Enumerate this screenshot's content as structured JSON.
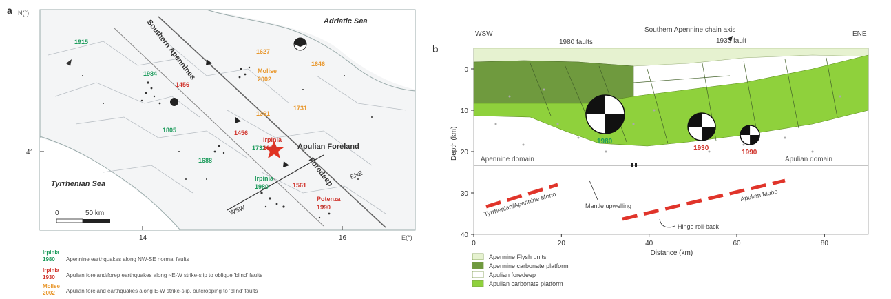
{
  "panel_a": {
    "label": "a",
    "lat_unit": "N(°)",
    "lon_unit": "E(°)",
    "lat_tick": "41",
    "lon_ticks": [
      "14",
      "16"
    ],
    "seas": {
      "adriatic": "Adriatic Sea",
      "tyrrhenian": "Tyrrhenian Sea"
    },
    "features": {
      "southern_apennines": "Southern Apennines",
      "apulian_foreland": "Apulian Foreland",
      "foredeep": "Foredeep"
    },
    "profile_ends": {
      "wsw": "WSW",
      "ene": "ENE"
    },
    "scale": {
      "zero": "0",
      "end": "50 km"
    },
    "years_green": [
      "1915",
      "1984",
      "1805",
      "1688",
      "1732"
    ],
    "years_red": [
      "1456",
      "1456",
      "1561"
    ],
    "years_orange": [
      "1627",
      "1731",
      "1361",
      "1646"
    ],
    "labeled_events": {
      "irpinia_1930": [
        "Irpinia",
        "1930"
      ],
      "irpinia_1980": [
        "Irpinia",
        "1980"
      ],
      "molise_2002": [
        "Molise",
        "2002"
      ],
      "potenza_1990": [
        "Potenza",
        "1990"
      ]
    },
    "legend": [
      {
        "place": "Irpinia",
        "year": "1980",
        "color": "#1a9a5a",
        "text": "Apennine earthquakes along NW-SE normal faults"
      },
      {
        "place": "Irpinia",
        "year": "1930",
        "color": "#d0342c",
        "text": "Apulian foreland/forep earthquakes along ~E-W strike-slip to oblique 'blind' faults"
      },
      {
        "place": "Molise",
        "year": "2002",
        "color": "#e8962a",
        "text": "Apulian foreland earthquakes along E-W strike-slip, outcropping to 'blind' faults"
      }
    ],
    "colors": {
      "green": "#1a9a5a",
      "red": "#d0342c",
      "orange": "#e8962a"
    }
  },
  "panel_b": {
    "label": "b",
    "title_axis": "Southern Apennine chain axis",
    "wsw": "WSW",
    "ene": "ENE",
    "faults_1980": "1980 faults",
    "fault_1930": "1930 fault",
    "apennine_domain": "Apennine domain",
    "apulian_domain": "Apulian domain",
    "tyrrhenian_moho": "Tyrrhenian/Apennine Moho",
    "apulian_moho": "Apulian Moho",
    "mantle": "Mantle upwelling",
    "hinge": "Hinge roll-back",
    "ylabel": "Depth (km)",
    "xlabel": "Distance (km)",
    "y_ticks": [
      "0",
      "10",
      "20",
      "30",
      "40"
    ],
    "x_ticks": [
      "0",
      "20",
      "40",
      "60",
      "80"
    ],
    "y_values": [
      0,
      10,
      20,
      30,
      40
    ],
    "x_values": [
      0,
      20,
      40,
      60,
      80
    ],
    "x_range": [
      0,
      90
    ],
    "y_range": [
      -5,
      40
    ],
    "mechanisms": [
      {
        "label": "1980",
        "color": "#1a9a5a",
        "distance_km": 30,
        "depth_km": 11
      },
      {
        "label": "1930",
        "color": "#d0342c",
        "distance_km": 52,
        "depth_km": 14
      },
      {
        "label": "1990",
        "color": "#d0342c",
        "distance_km": 63,
        "depth_km": 16
      }
    ],
    "legend": [
      {
        "text": "Apennine Flysh units",
        "swatch": "#e6f2d0"
      },
      {
        "text": "Apennine carbonate platform",
        "swatch": "#6f9a3e"
      },
      {
        "text": "Apulian foredeep",
        "swatch": "#ffffff"
      },
      {
        "text": "Apulian carbonate platform",
        "swatch": "#8fd13c"
      }
    ]
  }
}
